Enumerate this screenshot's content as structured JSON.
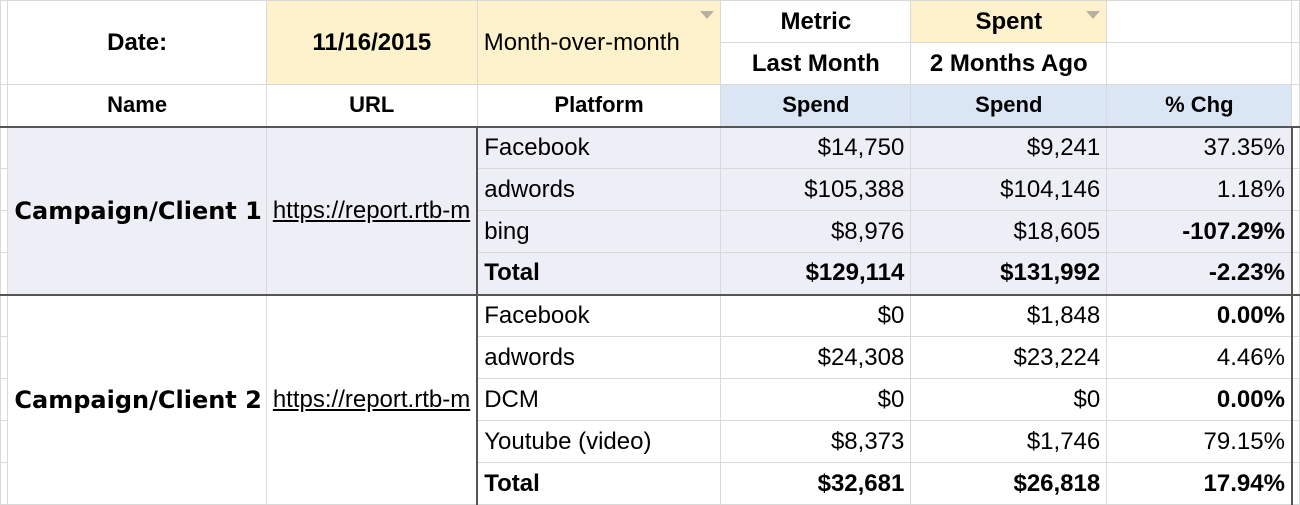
{
  "header": {
    "date_label": "Date:",
    "date_value": "11/16/2015",
    "comparison_mode": "Month-over-month",
    "metric_label": "Metric",
    "metric_value": "Spent",
    "last_month_label": "Last Month",
    "two_months_label": "2 Months Ago"
  },
  "columns": [
    "Name",
    "URL",
    "Platform",
    "Spend",
    "Spend",
    "% Chg"
  ],
  "campaigns": [
    {
      "name": "Campaign/Client 1",
      "url": "https://report.rtb-m",
      "rows": [
        {
          "platform": "Facebook",
          "last": "$14,750",
          "prev": "$9,241",
          "chg": "37.35%"
        },
        {
          "platform": "adwords",
          "last": "$105,388",
          "prev": "$104,146",
          "chg": "1.18%"
        },
        {
          "platform": "bing",
          "last": "$8,976",
          "prev": "$18,605",
          "chg": "-107.29%"
        },
        {
          "platform": "Total",
          "last": "$129,114",
          "prev": "$131,992",
          "chg": "-2.23%"
        }
      ]
    },
    {
      "name": "Campaign/Client 2",
      "url": "https://report.rtb-m",
      "rows": [
        {
          "platform": "Facebook",
          "last": "$0",
          "prev": "$1,848",
          "chg": "0.00%"
        },
        {
          "platform": "adwords",
          "last": "$24,308",
          "prev": "$23,224",
          "chg": "4.46%"
        },
        {
          "platform": "DCM",
          "last": "$0",
          "prev": "$0",
          "chg": "0.00%"
        },
        {
          "platform": "Youtube (video)",
          "last": "$8,373",
          "prev": "$1,746",
          "chg": "79.15%"
        },
        {
          "platform": "Total",
          "last": "$32,681",
          "prev": "$26,818",
          "chg": "17.94%"
        }
      ]
    }
  ],
  "colors": {
    "header_yellow": "#fef2cc",
    "header_blue": "#dae6f4",
    "campaign1_band": "#eeeef7",
    "positive_green": "#7bbf6b",
    "negative_red": "#d86060",
    "link_blue": "#1a55c9"
  }
}
